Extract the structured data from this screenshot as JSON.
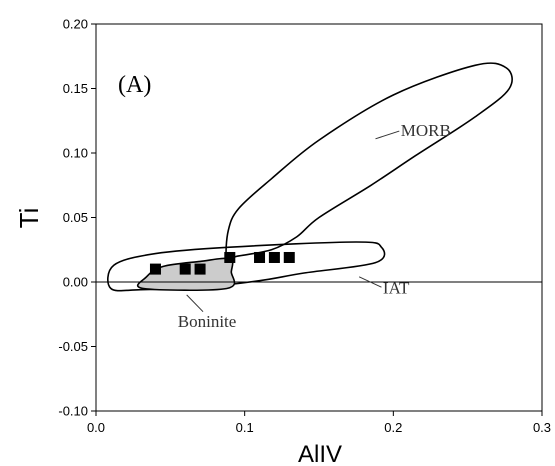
{
  "chart_data": {
    "type": "scatter",
    "panel_label": "(A)",
    "xlabel": "AlIV",
    "ylabel": "Ti",
    "xlim": [
      0.0,
      0.3
    ],
    "ylim": [
      -0.1,
      0.2
    ],
    "x_ticks": [
      "0.0",
      "0.1",
      "0.2",
      "0.3"
    ],
    "y_ticks": [
      "-0.10",
      "-0.05",
      "0.00",
      "0.05",
      "0.10",
      "0.15",
      "0.20"
    ],
    "grid": false,
    "series": [
      {
        "marker": "square",
        "color": "#000000",
        "points": [
          {
            "x": 0.04,
            "y": 0.01
          },
          {
            "x": 0.06,
            "y": 0.01
          },
          {
            "x": 0.07,
            "y": 0.01
          },
          {
            "x": 0.09,
            "y": 0.019
          },
          {
            "x": 0.11,
            "y": 0.019
          },
          {
            "x": 0.12,
            "y": 0.019
          },
          {
            "x": 0.13,
            "y": 0.019
          }
        ]
      }
    ],
    "fields": [
      {
        "label": "MORB",
        "fill": "none",
        "outline": [
          [
            0.088,
            0.018
          ],
          [
            0.089,
            0.04
          ],
          [
            0.096,
            0.057
          ],
          [
            0.118,
            0.08
          ],
          [
            0.15,
            0.11
          ],
          [
            0.2,
            0.145
          ],
          [
            0.255,
            0.168
          ],
          [
            0.276,
            0.166
          ],
          [
            0.278,
            0.15
          ],
          [
            0.255,
            0.128
          ],
          [
            0.215,
            0.098
          ],
          [
            0.185,
            0.075
          ],
          [
            0.15,
            0.05
          ],
          [
            0.135,
            0.035
          ],
          [
            0.118,
            0.025
          ],
          [
            0.095,
            0.02
          ]
        ]
      },
      {
        "label": "IAT",
        "fill": "none",
        "outline": [
          [
            0.01,
            -0.005
          ],
          [
            0.012,
            0.013
          ],
          [
            0.04,
            0.022
          ],
          [
            0.09,
            0.027
          ],
          [
            0.175,
            0.031
          ],
          [
            0.192,
            0.027
          ],
          [
            0.188,
            0.015
          ],
          [
            0.14,
            0.007
          ],
          [
            0.11,
            0.001
          ],
          [
            0.07,
            -0.004
          ],
          [
            0.03,
            -0.006
          ]
        ]
      },
      {
        "label": "Boninite",
        "fill": "#cccccc",
        "outline": [
          [
            0.032,
            -0.005
          ],
          [
            0.034,
            0.004
          ],
          [
            0.045,
            0.012
          ],
          [
            0.07,
            0.016
          ],
          [
            0.09,
            0.018
          ],
          [
            0.091,
            0.008
          ],
          [
            0.088,
            -0.005
          ]
        ]
      }
    ],
    "annotations": [
      {
        "label": "MORB",
        "x": 0.205,
        "y": 0.117,
        "leader": [
          [
            0.204,
            0.117
          ],
          [
            0.188,
            0.111
          ]
        ]
      },
      {
        "label": "IAT",
        "x": 0.193,
        "y": -0.005,
        "leader": [
          [
            0.192,
            -0.004
          ],
          [
            0.177,
            0.004
          ]
        ]
      },
      {
        "label": "Boninite",
        "x": 0.055,
        "y": -0.031,
        "leader": [
          [
            0.072,
            -0.023
          ],
          [
            0.061,
            -0.01
          ]
        ]
      }
    ]
  }
}
